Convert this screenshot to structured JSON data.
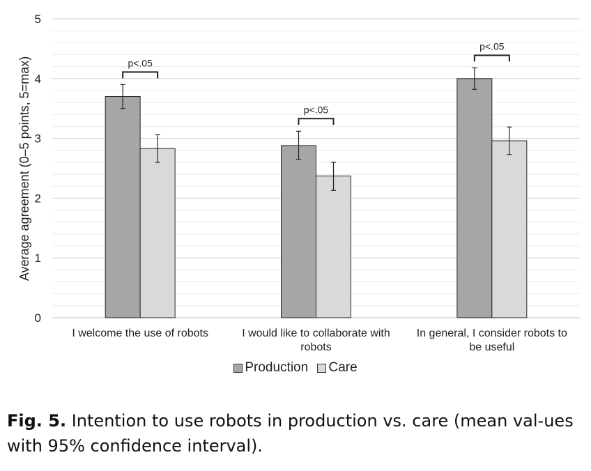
{
  "chart_data": {
    "type": "bar",
    "ylabel": "Average agreement (0–5 points, 5=max)",
    "ylim": [
      0,
      5
    ],
    "yticks": [
      "0",
      "1",
      "2",
      "3",
      "4",
      "5"
    ],
    "grid": true,
    "categories": [
      [
        "I welcome the use of robots"
      ],
      [
        "I would like to collaborate with",
        "robots"
      ],
      [
        "In general, I consider robots to",
        "be useful"
      ]
    ],
    "series": [
      {
        "name": "Production",
        "color": "#a6a6a6",
        "values": [
          3.7,
          2.88,
          4.0
        ],
        "ci_low": [
          3.5,
          2.65,
          3.82
        ],
        "ci_high": [
          3.9,
          3.12,
          4.18
        ]
      },
      {
        "name": "Care",
        "color": "#d9d9d9",
        "values": [
          2.83,
          2.37,
          2.96
        ],
        "ci_low": [
          2.6,
          2.13,
          2.73
        ],
        "ci_high": [
          3.06,
          2.6,
          3.19
        ]
      }
    ],
    "annotations": [
      "p<.05",
      "p<.05",
      "p<.05"
    ],
    "legend_position": "bottom"
  },
  "caption": {
    "label": "Fig. 5.",
    "text": " Intention to use robots in production vs. care (mean val-ues with 95% confidence interval)."
  }
}
